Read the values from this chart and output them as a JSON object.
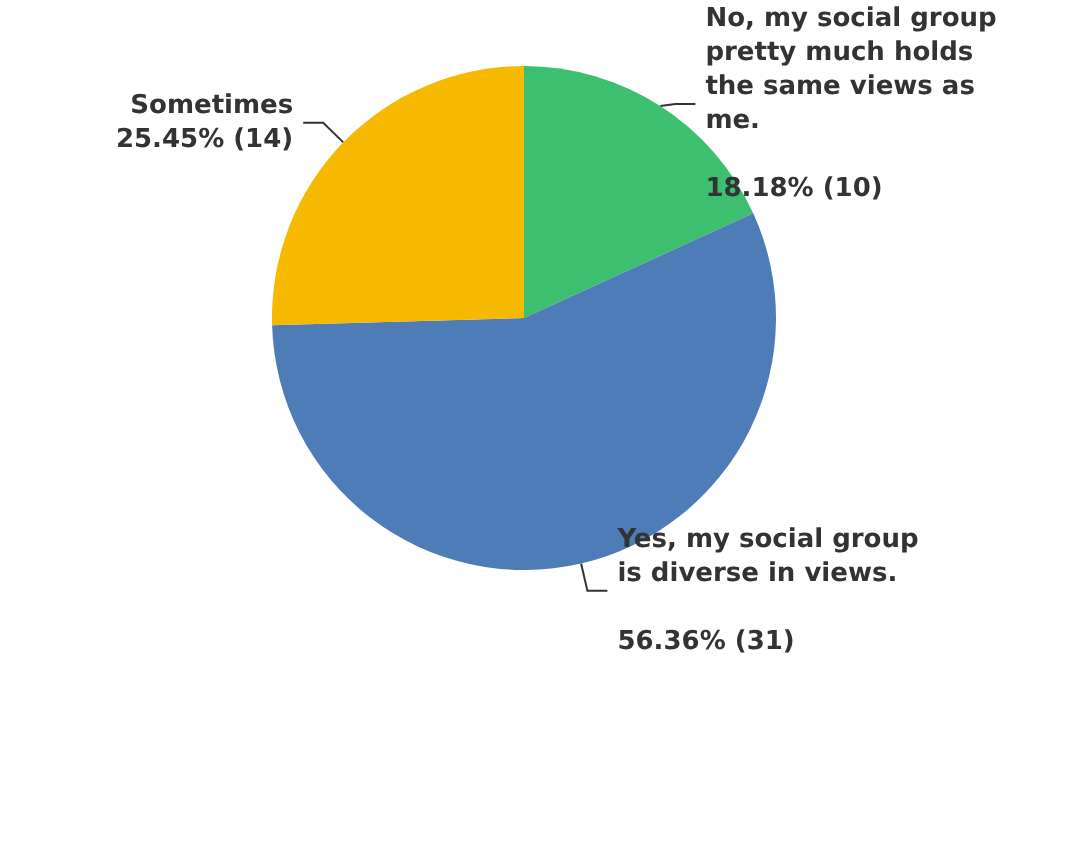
{
  "chart_data": {
    "type": "pie",
    "categories": [
      "No, my social group pretty much holds the same views as me.",
      "Yes, my social group is diverse in views.",
      "Sometimes"
    ],
    "values": [
      10,
      31,
      14
    ],
    "value_labels": [
      "18.18% (10)",
      "56.36% (31)",
      "25.45% (14)"
    ],
    "colors": [
      "#3cbf6e",
      "#4d7cb6",
      "#f6b900"
    ],
    "legend": false
  }
}
